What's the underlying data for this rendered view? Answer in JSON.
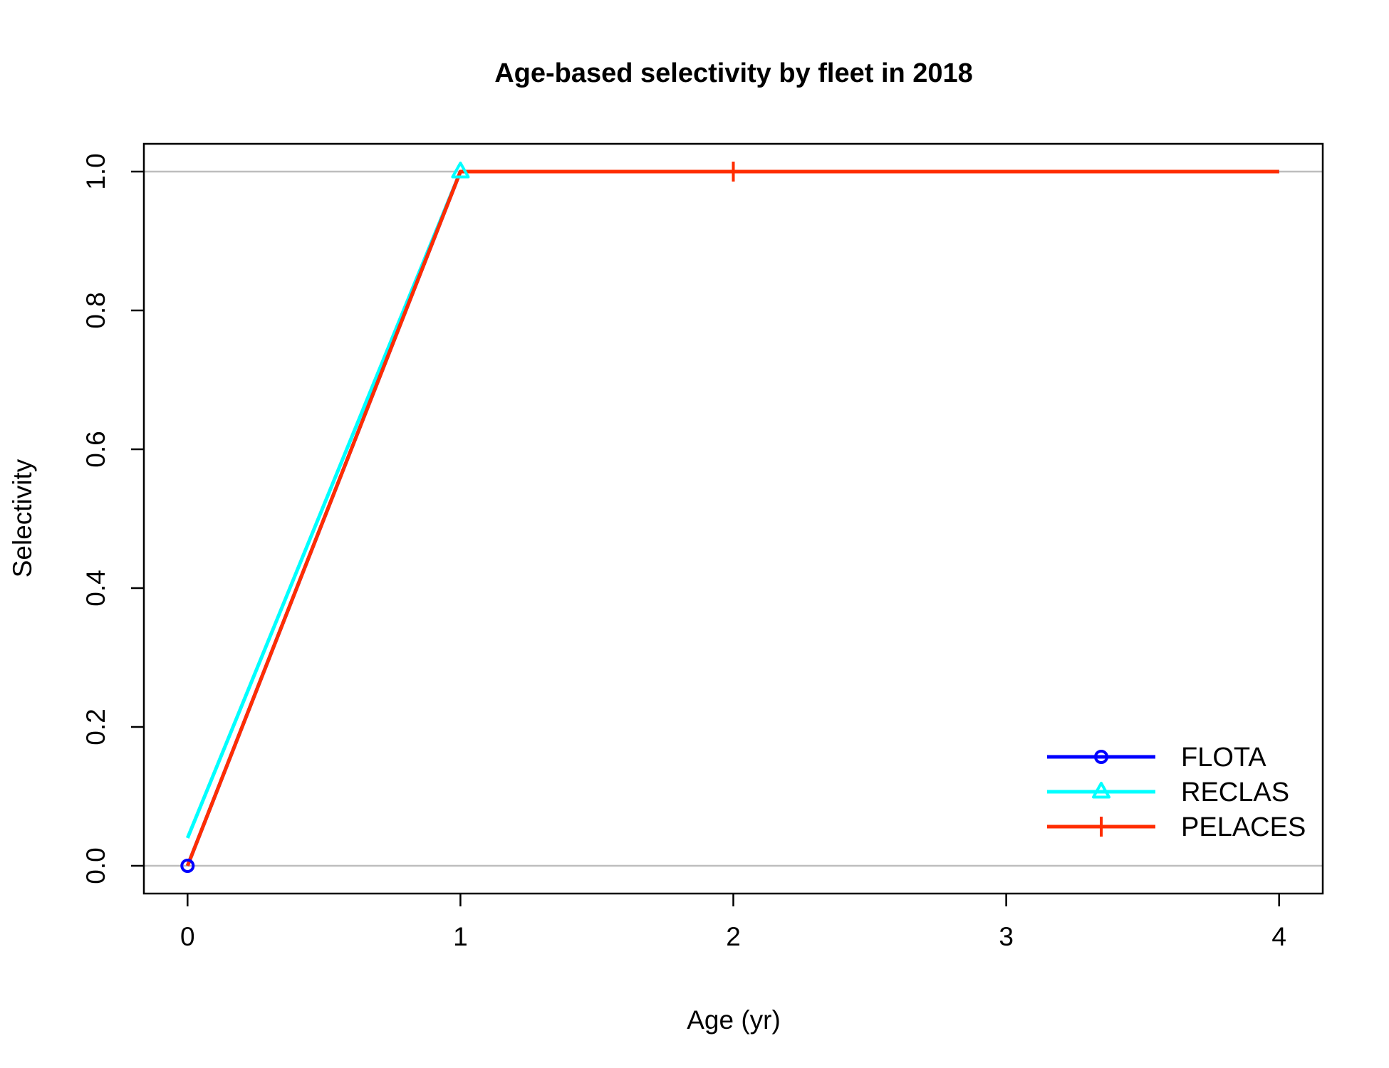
{
  "chart_data": {
    "type": "line",
    "title": "Age-based selectivity by fleet in 2018",
    "xlabel": "Age (yr)",
    "ylabel": "Selectivity",
    "xlim": [
      -0.16,
      4.16
    ],
    "ylim": [
      -0.04,
      1.04
    ],
    "x_ticks": [
      0,
      1,
      2,
      3,
      4
    ],
    "y_ticks": [
      0.0,
      0.2,
      0.4,
      0.6,
      0.8,
      1.0
    ],
    "x_tick_labels": [
      "0",
      "1",
      "2",
      "3",
      "4"
    ],
    "y_tick_labels": [
      "0.0",
      "0.2",
      "0.4",
      "0.6",
      "0.8",
      "1.0"
    ],
    "reference_lines": [
      0,
      1
    ],
    "reference_line_color": "#bebebe",
    "legend_position": "bottom-right",
    "series": [
      {
        "name": "FLOTA",
        "color": "#0000ff",
        "marker": "circle",
        "x": [
          0,
          1,
          2,
          3,
          4
        ],
        "values": [
          0,
          1,
          1,
          1,
          1
        ],
        "marker_x": [
          0
        ]
      },
      {
        "name": "RECLAS",
        "color": "#00ffff",
        "marker": "triangle",
        "x": [
          0,
          1,
          2,
          3,
          4
        ],
        "values": [
          0.04,
          1,
          1,
          1,
          1
        ],
        "marker_x": [
          1
        ]
      },
      {
        "name": "PELACES",
        "color": "#ff2d00",
        "marker": "plus",
        "x": [
          0,
          1,
          2,
          3,
          4
        ],
        "values": [
          0,
          1,
          1,
          1,
          1
        ],
        "marker_x": [
          2
        ]
      }
    ]
  }
}
